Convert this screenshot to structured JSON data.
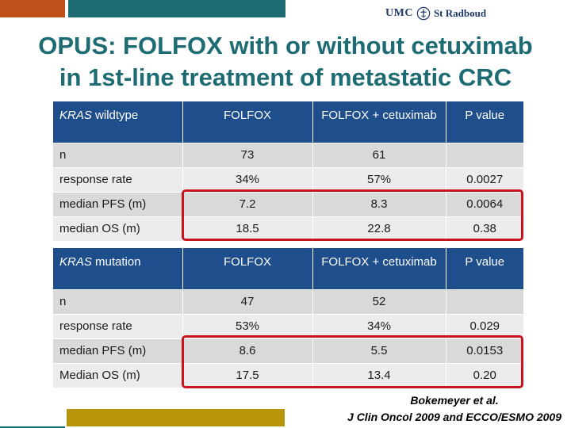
{
  "logo": {
    "text_left": "UMC",
    "text_right": "St Radboud",
    "seal_icon": "seal-icon"
  },
  "title": {
    "line1": "OPUS: FOLFOX with or without cetuximab",
    "line2": "in 1st-line treatment of metastatic CRC"
  },
  "colors": {
    "title": "#1d6b73",
    "header": "#1f4e8c",
    "highlight": "#c8141e",
    "bar_orange": "#c0501a",
    "bar_teal": "#1d6b73",
    "bar_gold": "#b8960c"
  },
  "table_wildtype": {
    "header_italic": "KRAS",
    "header_rest": " wildtype",
    "columns": [
      "FOLFOX",
      "FOLFOX + cetuximab",
      "P value"
    ],
    "rows": [
      [
        "n",
        "73",
        "61",
        ""
      ],
      [
        "response rate",
        "34%",
        "57%",
        "0.0027"
      ],
      [
        "median PFS (m)",
        "7.2",
        "8.3",
        "0.0064"
      ],
      [
        "median OS (m)",
        "18.5",
        "22.8",
        "0.38"
      ]
    ]
  },
  "table_mutation": {
    "header_italic": "KRAS",
    "header_rest": " mutation",
    "columns": [
      "FOLFOX",
      "FOLFOX + cetuximab",
      "P value"
    ],
    "rows": [
      [
        "n",
        "47",
        "52",
        ""
      ],
      [
        "response rate",
        "53%",
        "34%",
        "0.029"
      ],
      [
        "median PFS (m)",
        "8.6",
        "5.5",
        "0.0153"
      ],
      [
        "Median OS (m)",
        "17.5",
        "13.4",
        "0.20"
      ]
    ]
  },
  "citation": {
    "line1": "Bokemeyer et al.",
    "line2": "J Clin Oncol 2009 and ECCO/ESMO 2009"
  }
}
